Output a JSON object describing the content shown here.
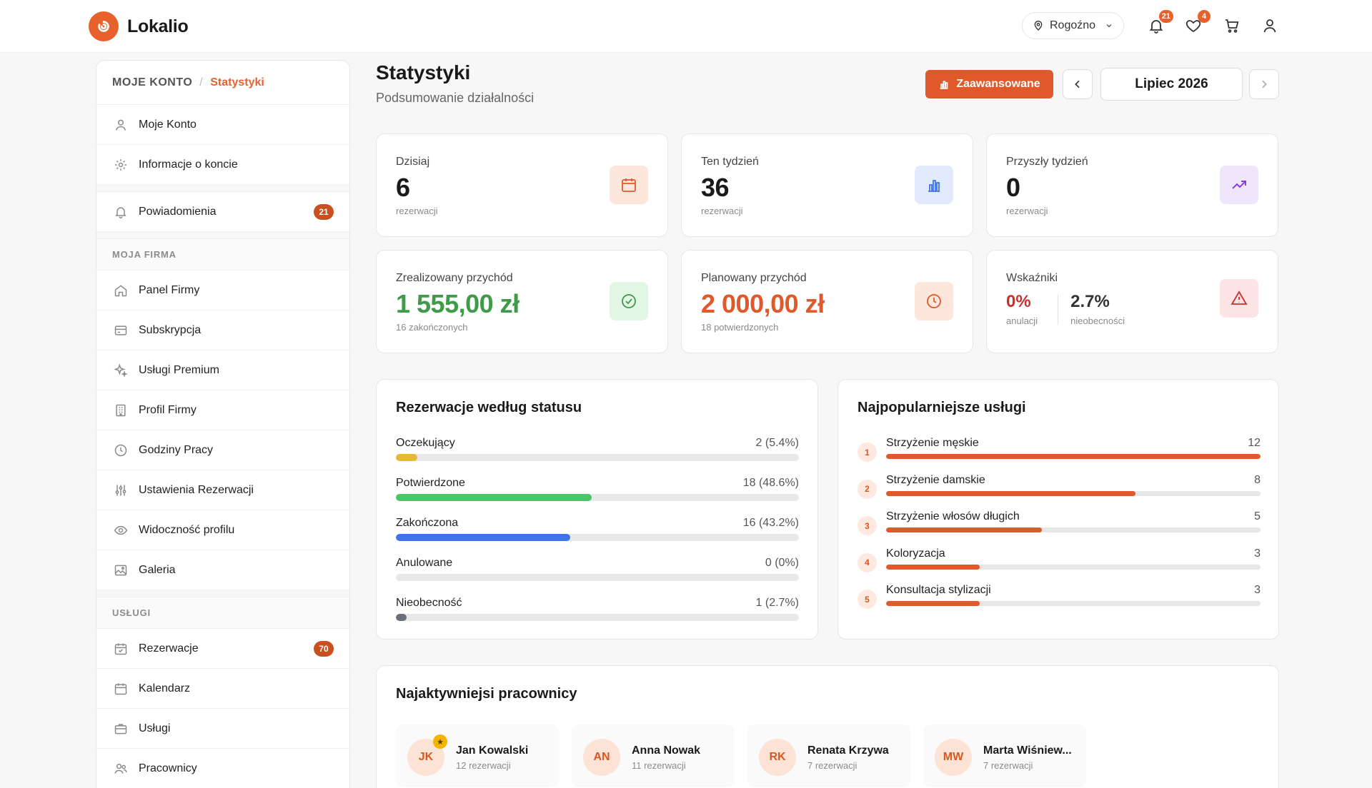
{
  "brand": {
    "name": "Lokalio",
    "color": "#e8612c"
  },
  "header": {
    "location": "Rogoźno",
    "notifications_count": "21",
    "favorites_count": "4"
  },
  "sidebar": {
    "breadcrumb_root": "MOJE KONTO",
    "breadcrumb_current": "Statystyki",
    "account_items": [
      {
        "label": "Moje Konto",
        "icon": "user-icon"
      },
      {
        "label": "Informacje o koncie",
        "icon": "gear-icon"
      }
    ],
    "notifications": {
      "label": "Powiadomienia",
      "badge": "21"
    },
    "company_heading": "MOJA FIRMA",
    "company_items": [
      {
        "label": "Panel Firmy",
        "icon": "home-icon"
      },
      {
        "label": "Subskrypcja",
        "icon": "card-icon"
      },
      {
        "label": "Usługi Premium",
        "icon": "sparkle-icon"
      },
      {
        "label": "Profil Firmy",
        "icon": "building-icon"
      },
      {
        "label": "Godziny Pracy",
        "icon": "clock-icon"
      },
      {
        "label": "Ustawienia Rezerwacji",
        "icon": "sliders-icon"
      },
      {
        "label": "Widoczność profilu",
        "icon": "eye-icon"
      },
      {
        "label": "Galeria",
        "icon": "image-icon"
      }
    ],
    "services_heading": "USŁUGI",
    "services_items": [
      {
        "label": "Rezerwacje",
        "icon": "calendar-check-icon",
        "badge": "70"
      },
      {
        "label": "Kalendarz",
        "icon": "calendar-icon"
      },
      {
        "label": "Usługi",
        "icon": "briefcase-icon"
      },
      {
        "label": "Pracownicy",
        "icon": "users-icon"
      }
    ]
  },
  "page": {
    "title": "Statystyki",
    "subtitle": "Podsumowanie działalności",
    "advanced_label": "Zaawansowane",
    "month": "Lipiec 2026"
  },
  "stats": {
    "today": {
      "label": "Dzisiaj",
      "value": "6",
      "foot": "rezerwacji"
    },
    "this_week": {
      "label": "Ten tydzień",
      "value": "36",
      "foot": "rezerwacji"
    },
    "next_week": {
      "label": "Przyszły tydzień",
      "value": "0",
      "foot": "rezerwacji"
    },
    "realized": {
      "label": "Zrealizowany przychód",
      "value": "1 555,00 zł",
      "foot": "16 zakończonych"
    },
    "planned": {
      "label": "Planowany przychód",
      "value": "2 000,00 zł",
      "foot": "18 potwierdzonych"
    },
    "indicators": {
      "label": "Wskaźniki",
      "cancel_value": "0%",
      "cancel_label": "anulacji",
      "noshow_value": "2.7%",
      "noshow_label": "nieobecności"
    }
  },
  "status_chart": {
    "title": "Rezerwacje według statusu",
    "rows": [
      {
        "label": "Oczekujący",
        "value": "2 (5.4%)",
        "percent": 5.4,
        "color": "#e5b838"
      },
      {
        "label": "Potwierdzone",
        "value": "18 (48.6%)",
        "percent": 48.6,
        "color": "#4cc46a"
      },
      {
        "label": "Zakończona",
        "value": "16 (43.2%)",
        "percent": 43.2,
        "color": "#3f73e6"
      },
      {
        "label": "Anulowane",
        "value": "0 (0%)",
        "percent": 0,
        "color": "#e05050"
      },
      {
        "label": "Nieobecność",
        "value": "1 (2.7%)",
        "percent": 2.7,
        "color": "#6b6f78"
      }
    ]
  },
  "popular": {
    "title": "Najpopularniejsze usługi",
    "items": [
      {
        "rank": "1",
        "label": "Strzyżenie męskie",
        "count": "12",
        "value": 12
      },
      {
        "rank": "2",
        "label": "Strzyżenie damskie",
        "count": "8",
        "value": 8
      },
      {
        "rank": "3",
        "label": "Strzyżenie włosów długich",
        "count": "5",
        "value": 5
      },
      {
        "rank": "4",
        "label": "Koloryzacja",
        "count": "3",
        "value": 3
      },
      {
        "rank": "5",
        "label": "Konsultacja stylizacji",
        "count": "3",
        "value": 3
      }
    ],
    "max": 12
  },
  "employees": {
    "title": "Najaktywniejsi pracownicy",
    "items": [
      {
        "initials": "JK",
        "name": "Jan Kowalski",
        "count": "12 rezerwacji",
        "top": true
      },
      {
        "initials": "AN",
        "name": "Anna Nowak",
        "count": "11 rezerwacji",
        "top": false
      },
      {
        "initials": "RK",
        "name": "Renata Krzywa",
        "count": "7 rezerwacji",
        "top": false
      },
      {
        "initials": "MW",
        "name": "Marta Wiśniew...",
        "count": "7 rezerwacji",
        "top": false
      }
    ]
  }
}
